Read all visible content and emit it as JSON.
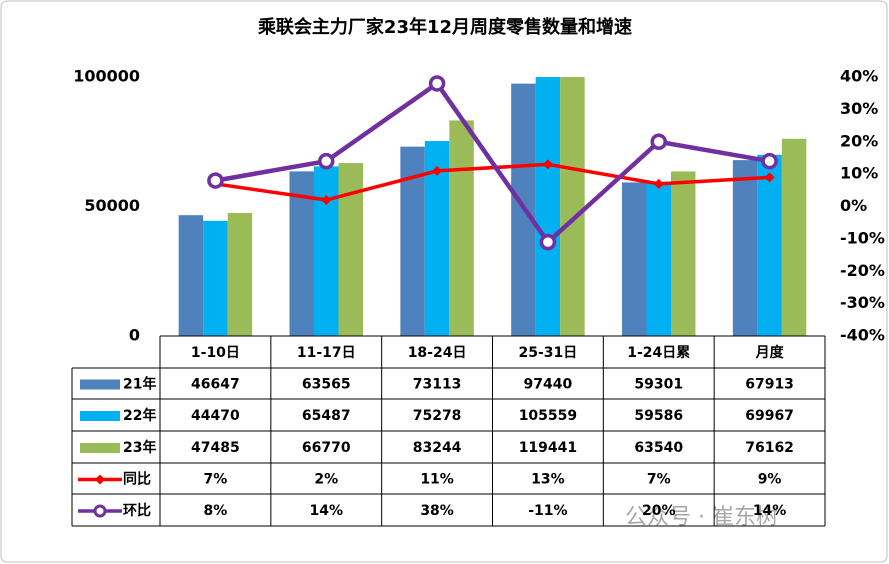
{
  "chart_data": {
    "type": "bar",
    "title": "乘联会主力厂家23年12月周度零售数量和增速",
    "categories": [
      "1-10日",
      "11-17日",
      "18-24日",
      "25-31日",
      "1-24日累",
      "月度"
    ],
    "series": [
      {
        "name": "21年",
        "type": "bar",
        "color": "#4f81bd",
        "values": [
          46647,
          63565,
          73113,
          97440,
          59301,
          67913
        ]
      },
      {
        "name": "22年",
        "type": "bar",
        "color": "#00b0f0",
        "values": [
          44470,
          65487,
          75278,
          105559,
          59586,
          69967
        ]
      },
      {
        "name": "23年",
        "type": "bar",
        "color": "#9bbb59",
        "values": [
          47485,
          66770,
          83244,
          119441,
          63540,
          76162
        ]
      },
      {
        "name": "同比",
        "type": "line",
        "axis": "y2",
        "marker": "diamond",
        "color": "#ff0000",
        "values": [
          7,
          2,
          11,
          13,
          7,
          9
        ],
        "value_labels": [
          "7%",
          "2%",
          "11%",
          "13%",
          "7%",
          "9%"
        ]
      },
      {
        "name": "环比",
        "type": "line",
        "axis": "y2",
        "marker": "circle",
        "color": "#7030a0",
        "values": [
          8,
          14,
          38,
          -11,
          20,
          14
        ],
        "value_labels": [
          "8%",
          "14%",
          "38%",
          "-11%",
          "20%",
          "14%"
        ]
      }
    ],
    "ylim": [
      0,
      100000
    ],
    "yticks": [
      0,
      50000,
      100000
    ],
    "y2lim": [
      -40,
      40
    ],
    "y2ticks": [
      {
        "value": -40,
        "label": "-40%"
      },
      {
        "value": -30,
        "label": "-30%"
      },
      {
        "value": -20,
        "label": "-20%"
      },
      {
        "value": -10,
        "label": "-10%"
      },
      {
        "value": 0,
        "label": "0%"
      },
      {
        "value": 10,
        "label": "10%"
      },
      {
        "value": 20,
        "label": "20%"
      },
      {
        "value": 30,
        "label": "30%"
      },
      {
        "value": 40,
        "label": "40%"
      }
    ],
    "grid": false,
    "watermark": "公众号 · 崔东树"
  }
}
